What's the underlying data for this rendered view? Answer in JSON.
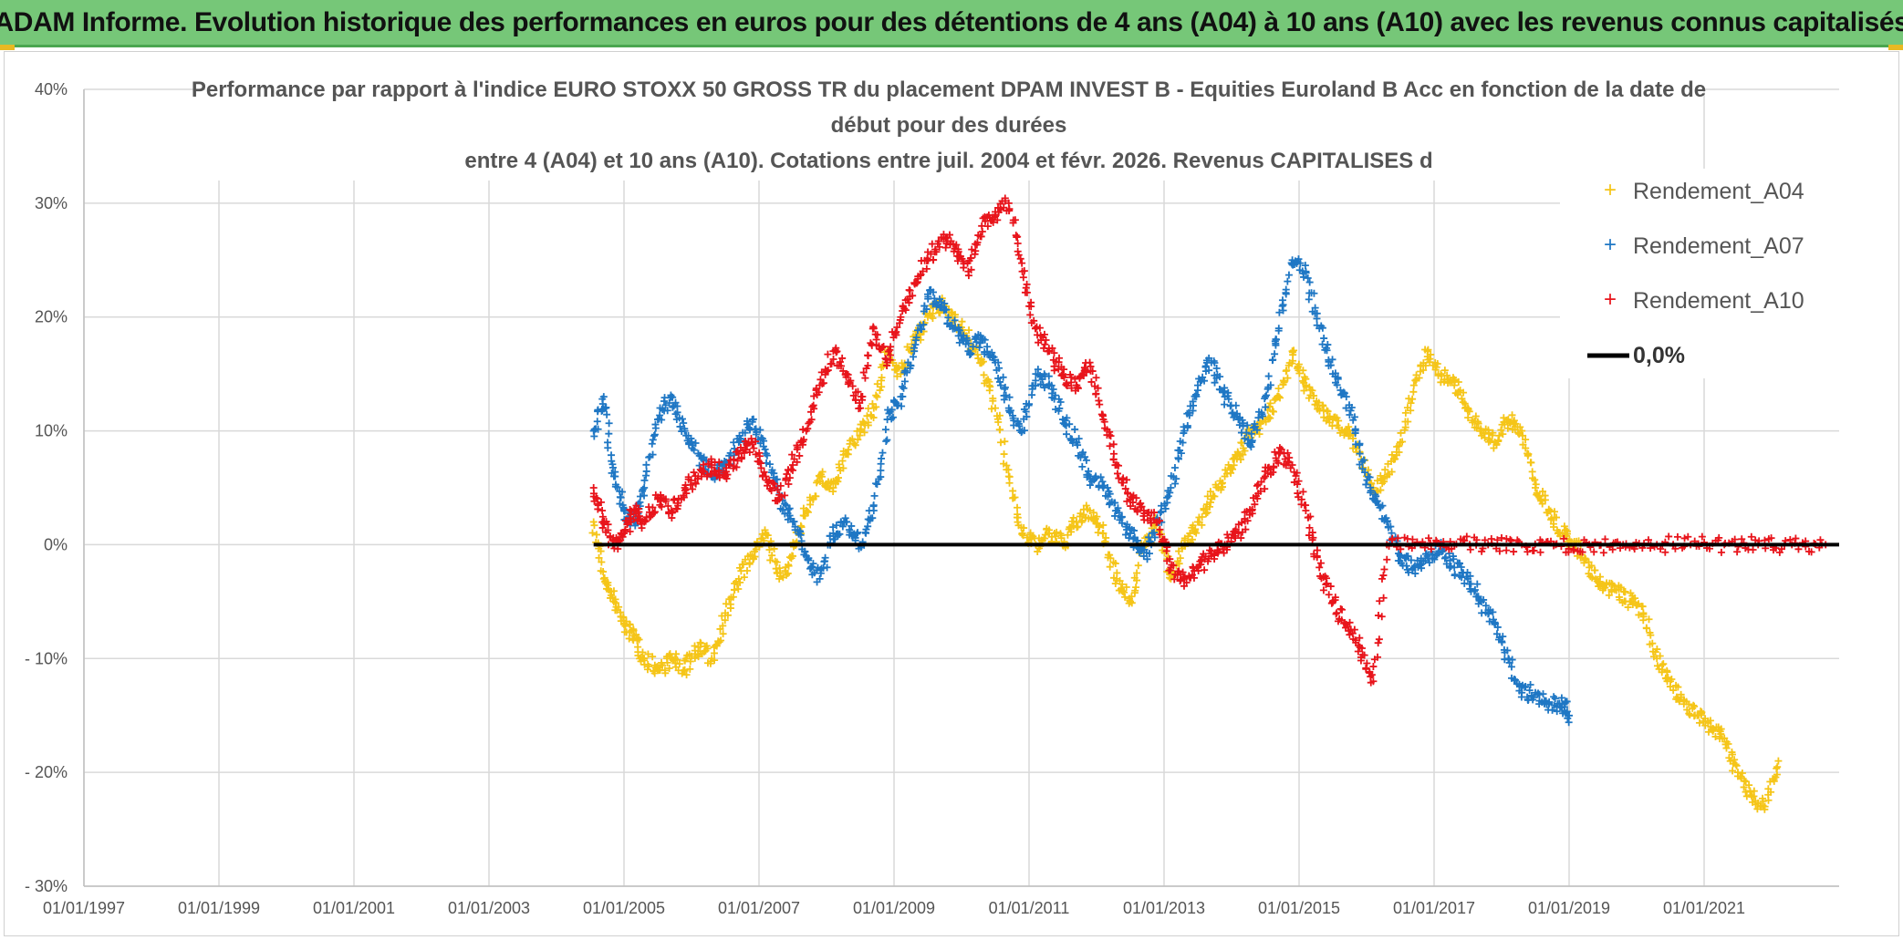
{
  "banner": {
    "title": "ADAM Informe. Evolution historique des performances en euros pour des détentions de 4 ans (A04) à 10 ans (A10) avec les revenus connus capitalisés"
  },
  "chart_data": {
    "type": "scatter",
    "title_lines": [
      "Performance par rapport à l'indice EURO STOXX 50 GROSS TR  du placement DPAM INVEST B - Equities Euroland B Acc en fonction de la date de",
      "début pour des durées",
      "entre 4 (A04) et 10 ans (A10). Cotations entre juil. 2004 et févr. 2026. Revenus CAPITALISES d"
    ],
    "xlabel": "",
    "ylabel": "",
    "xlim": [
      1997.0,
      2023.0
    ],
    "ylim": [
      -30,
      40
    ],
    "x_ticks": [
      1997,
      1999,
      2001,
      2003,
      2005,
      2007,
      2009,
      2011,
      2013,
      2015,
      2017,
      2019,
      2021
    ],
    "x_tick_labels": [
      "01/01/1997",
      "01/01/1999",
      "01/01/2001",
      "01/01/2003",
      "01/01/2005",
      "01/01/2007",
      "01/01/2009",
      "01/01/2011",
      "01/01/2013",
      "01/01/2015",
      "01/01/2017",
      "01/01/2019",
      "01/01/2021"
    ],
    "y_ticks": [
      -30,
      -20,
      -10,
      0,
      10,
      20,
      30,
      40
    ],
    "y_tick_labels": [
      "- 30%",
      "- 20%",
      "- 10%",
      "0%",
      "10%",
      "20%",
      "30%",
      "40%"
    ],
    "grid": true,
    "legend_position": "top-right",
    "series": [
      {
        "name": "Rendement_A04",
        "color": "#f5c518",
        "marker": "+",
        "points": [
          [
            2004.55,
            2
          ],
          [
            2004.7,
            -3
          ],
          [
            2004.85,
            -5
          ],
          [
            2005.0,
            -7
          ],
          [
            2005.15,
            -8
          ],
          [
            2005.3,
            -10
          ],
          [
            2005.5,
            -11
          ],
          [
            2005.7,
            -10
          ],
          [
            2005.9,
            -11
          ],
          [
            2006.1,
            -9
          ],
          [
            2006.3,
            -10
          ],
          [
            2006.5,
            -6
          ],
          [
            2006.7,
            -3
          ],
          [
            2006.9,
            -1
          ],
          [
            2007.1,
            1
          ],
          [
            2007.3,
            -3
          ],
          [
            2007.5,
            -1
          ],
          [
            2007.7,
            3
          ],
          [
            2007.9,
            6
          ],
          [
            2008.1,
            5
          ],
          [
            2008.3,
            8
          ],
          [
            2008.5,
            10
          ],
          [
            2008.7,
            12
          ],
          [
            2008.9,
            17
          ],
          [
            2009.1,
            15
          ],
          [
            2009.3,
            18
          ],
          [
            2009.5,
            20
          ],
          [
            2009.7,
            21
          ],
          [
            2009.9,
            20
          ],
          [
            2010.1,
            18
          ],
          [
            2010.3,
            16
          ],
          [
            2010.5,
            12
          ],
          [
            2010.7,
            6
          ],
          [
            2010.9,
            1
          ],
          [
            2011.1,
            0
          ],
          [
            2011.3,
            1
          ],
          [
            2011.5,
            0
          ],
          [
            2011.7,
            2
          ],
          [
            2011.9,
            3
          ],
          [
            2012.1,
            1
          ],
          [
            2012.3,
            -3
          ],
          [
            2012.5,
            -5
          ],
          [
            2012.7,
            0
          ],
          [
            2012.9,
            2
          ],
          [
            2013.1,
            -3
          ],
          [
            2013.3,
            0
          ],
          [
            2013.5,
            2
          ],
          [
            2013.7,
            4
          ],
          [
            2013.9,
            6
          ],
          [
            2014.1,
            8
          ],
          [
            2014.3,
            10
          ],
          [
            2014.5,
            11
          ],
          [
            2014.7,
            13
          ],
          [
            2014.9,
            17
          ],
          [
            2015.1,
            14
          ],
          [
            2015.3,
            12
          ],
          [
            2015.5,
            11
          ],
          [
            2015.7,
            10
          ],
          [
            2015.9,
            8
          ],
          [
            2016.1,
            5
          ],
          [
            2016.3,
            6
          ],
          [
            2016.5,
            9
          ],
          [
            2016.7,
            14
          ],
          [
            2016.9,
            17
          ],
          [
            2017.1,
            15
          ],
          [
            2017.3,
            14
          ],
          [
            2017.5,
            12
          ],
          [
            2017.7,
            10
          ],
          [
            2017.9,
            9
          ],
          [
            2018.1,
            11
          ],
          [
            2018.3,
            10
          ],
          [
            2018.5,
            5
          ],
          [
            2018.7,
            3
          ],
          [
            2018.9,
            1
          ],
          [
            2019.1,
            0
          ],
          [
            2019.3,
            -2
          ],
          [
            2019.5,
            -4
          ],
          [
            2019.7,
            -4
          ],
          [
            2019.9,
            -5
          ],
          [
            2020.1,
            -6
          ],
          [
            2020.3,
            -10
          ],
          [
            2020.5,
            -12
          ],
          [
            2020.7,
            -14
          ],
          [
            2020.9,
            -15
          ],
          [
            2021.1,
            -16
          ],
          [
            2021.3,
            -17
          ],
          [
            2021.5,
            -20
          ],
          [
            2021.7,
            -22
          ],
          [
            2021.9,
            -23
          ],
          [
            2022.1,
            -19
          ]
        ]
      },
      {
        "name": "Rendement_A07",
        "color": "#1f77c4",
        "marker": "+",
        "points": [
          [
            2004.55,
            10
          ],
          [
            2004.7,
            13
          ],
          [
            2004.85,
            6
          ],
          [
            2005.0,
            3
          ],
          [
            2005.15,
            2
          ],
          [
            2005.3,
            5
          ],
          [
            2005.5,
            11
          ],
          [
            2005.7,
            13
          ],
          [
            2005.9,
            10
          ],
          [
            2006.1,
            8
          ],
          [
            2006.3,
            6
          ],
          [
            2006.5,
            7
          ],
          [
            2006.7,
            9
          ],
          [
            2006.9,
            11
          ],
          [
            2007.1,
            8
          ],
          [
            2007.3,
            4
          ],
          [
            2007.5,
            2
          ],
          [
            2007.7,
            -1
          ],
          [
            2007.9,
            -3
          ],
          [
            2008.1,
            1
          ],
          [
            2008.3,
            2
          ],
          [
            2008.5,
            0
          ],
          [
            2008.7,
            3
          ],
          [
            2008.9,
            11
          ],
          [
            2009.1,
            13
          ],
          [
            2009.3,
            17
          ],
          [
            2009.5,
            22
          ],
          [
            2009.7,
            21
          ],
          [
            2009.9,
            19
          ],
          [
            2010.1,
            17
          ],
          [
            2010.3,
            18
          ],
          [
            2010.5,
            16
          ],
          [
            2010.7,
            12
          ],
          [
            2010.9,
            10
          ],
          [
            2011.1,
            15
          ],
          [
            2011.3,
            14
          ],
          [
            2011.5,
            11
          ],
          [
            2011.7,
            9
          ],
          [
            2011.9,
            6
          ],
          [
            2012.1,
            5
          ],
          [
            2012.3,
            3
          ],
          [
            2012.5,
            1
          ],
          [
            2012.7,
            -1
          ],
          [
            2012.9,
            2
          ],
          [
            2013.1,
            5
          ],
          [
            2013.3,
            10
          ],
          [
            2013.5,
            14
          ],
          [
            2013.7,
            16
          ],
          [
            2013.9,
            13
          ],
          [
            2014.1,
            11
          ],
          [
            2014.3,
            9
          ],
          [
            2014.5,
            13
          ],
          [
            2014.7,
            19
          ],
          [
            2014.9,
            25
          ],
          [
            2015.1,
            24
          ],
          [
            2015.3,
            19
          ],
          [
            2015.5,
            15
          ],
          [
            2015.7,
            13
          ],
          [
            2015.9,
            8
          ],
          [
            2016.1,
            4
          ],
          [
            2016.3,
            2
          ],
          [
            2016.5,
            -1
          ],
          [
            2016.7,
            -2
          ],
          [
            2016.9,
            -1
          ],
          [
            2017.1,
            0
          ],
          [
            2017.3,
            -2
          ],
          [
            2017.5,
            -3
          ],
          [
            2017.7,
            -5
          ],
          [
            2017.9,
            -7
          ],
          [
            2018.1,
            -10
          ],
          [
            2018.3,
            -13
          ],
          [
            2018.5,
            -13
          ],
          [
            2018.7,
            -14
          ],
          [
            2018.9,
            -14
          ],
          [
            2019.0,
            -15
          ]
        ]
      },
      {
        "name": "Rendement_A10",
        "color": "#e8141b",
        "marker": "+",
        "points": [
          [
            2004.55,
            5
          ],
          [
            2004.7,
            2
          ],
          [
            2004.85,
            0
          ],
          [
            2005.0,
            1
          ],
          [
            2005.15,
            3
          ],
          [
            2005.3,
            2
          ],
          [
            2005.5,
            4
          ],
          [
            2005.7,
            3
          ],
          [
            2005.9,
            5
          ],
          [
            2006.1,
            6
          ],
          [
            2006.3,
            7
          ],
          [
            2006.5,
            6
          ],
          [
            2006.7,
            8
          ],
          [
            2006.9,
            9
          ],
          [
            2007.1,
            6
          ],
          [
            2007.3,
            4
          ],
          [
            2007.5,
            7
          ],
          [
            2007.7,
            10
          ],
          [
            2007.9,
            14
          ],
          [
            2008.1,
            17
          ],
          [
            2008.3,
            15
          ],
          [
            2008.5,
            12
          ],
          [
            2008.7,
            19
          ],
          [
            2008.9,
            16
          ],
          [
            2009.1,
            20
          ],
          [
            2009.3,
            23
          ],
          [
            2009.5,
            25
          ],
          [
            2009.7,
            27
          ],
          [
            2009.9,
            26
          ],
          [
            2010.1,
            24
          ],
          [
            2010.3,
            28
          ],
          [
            2010.5,
            29
          ],
          [
            2010.7,
            30
          ],
          [
            2010.9,
            24
          ],
          [
            2011.1,
            19
          ],
          [
            2011.3,
            17
          ],
          [
            2011.5,
            15
          ],
          [
            2011.7,
            14
          ],
          [
            2011.9,
            16
          ],
          [
            2012.1,
            11
          ],
          [
            2012.3,
            7
          ],
          [
            2012.5,
            4
          ],
          [
            2012.7,
            3
          ],
          [
            2012.9,
            2
          ],
          [
            2013.1,
            -2
          ],
          [
            2013.3,
            -3
          ],
          [
            2013.5,
            -2
          ],
          [
            2013.7,
            -1
          ],
          [
            2013.9,
            0
          ],
          [
            2014.1,
            1
          ],
          [
            2014.3,
            3
          ],
          [
            2014.5,
            6
          ],
          [
            2014.7,
            8
          ],
          [
            2014.9,
            7
          ],
          [
            2015.1,
            3
          ],
          [
            2015.3,
            -2
          ],
          [
            2015.5,
            -5
          ],
          [
            2015.7,
            -7
          ],
          [
            2015.9,
            -9
          ],
          [
            2016.1,
            -12
          ],
          [
            2016.3,
            0
          ],
          [
            2016.8,
            0
          ],
          [
            2017.3,
            0
          ],
          [
            2017.8,
            0
          ],
          [
            2018.3,
            0
          ],
          [
            2018.8,
            0
          ],
          [
            2019.3,
            0
          ],
          [
            2019.8,
            0
          ],
          [
            2020.3,
            0
          ],
          [
            2020.8,
            0
          ],
          [
            2021.3,
            0
          ],
          [
            2021.8,
            0
          ],
          [
            2022.3,
            0
          ],
          [
            2022.8,
            0
          ]
        ]
      }
    ],
    "reference_line": {
      "name": "0,0%",
      "value": 0,
      "x_start": 2004.55,
      "x_end": 2023.0,
      "color": "#000000"
    }
  }
}
